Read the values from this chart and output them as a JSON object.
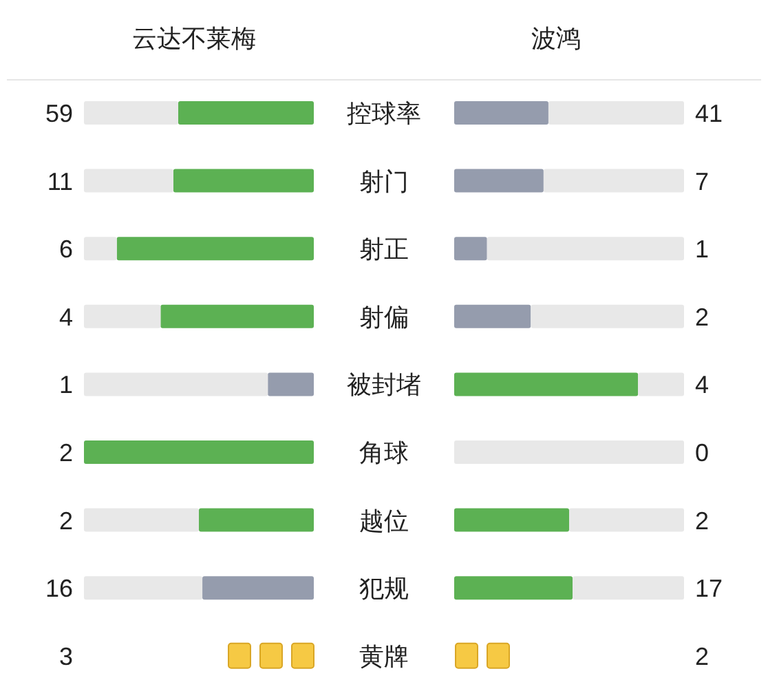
{
  "chart_data": {
    "type": "other",
    "categories": [
      "控球率",
      "射门",
      "射正",
      "射偏",
      "被封堵",
      "角球",
      "越位",
      "犯规",
      "黄牌"
    ],
    "series": [
      {
        "name": "云达不莱梅",
        "values": [
          59,
          11,
          6,
          4,
          1,
          2,
          2,
          16,
          null
        ],
        "colors": [
          "#5cb153",
          "#5cb153",
          "#5cb153",
          "#5cb153",
          "#959cad",
          "#5cb153",
          "#5cb153",
          "#959cad",
          "#f6c944"
        ],
        "value_labels": [
          "59",
          "11",
          "6",
          "4",
          "1",
          "2",
          "2",
          "16",
          "3"
        ]
      },
      {
        "name": "波鸿",
        "values": [
          41,
          7,
          1,
          2,
          4,
          0,
          2,
          17,
          null
        ],
        "colors": [
          "#959cad",
          "#959cad",
          "#959cad",
          "#959cad",
          "#5cb153",
          "#959cad",
          "#5cb153",
          "#5cb153",
          "#f6c944"
        ],
        "value_labels": [
          "41",
          "7",
          "1",
          "2",
          "4",
          "0",
          "2",
          "17",
          "2"
        ]
      }
    ]
  }
}
